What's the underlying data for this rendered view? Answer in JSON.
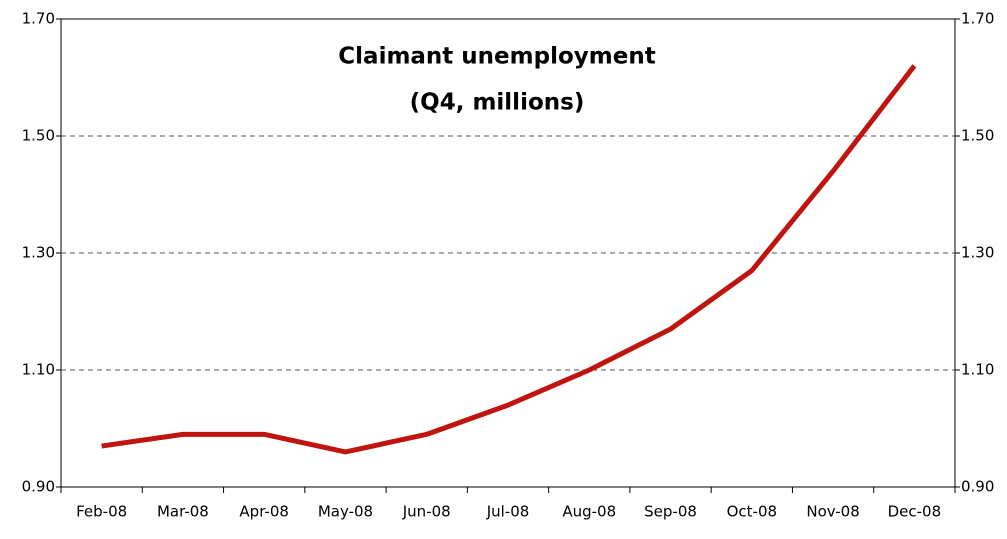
{
  "chart_data": {
    "type": "line",
    "title": "Claimant unemployment",
    "subtitle": "(Q4, millions)",
    "categories": [
      "Feb-08",
      "Mar-08",
      "Apr-08",
      "May-08",
      "Jun-08",
      "Jul-08",
      "Aug-08",
      "Sep-08",
      "Oct-08",
      "Nov-08",
      "Dec-08"
    ],
    "values": [
      0.97,
      0.99,
      0.99,
      0.96,
      0.99,
      1.04,
      1.1,
      1.17,
      1.27,
      1.44,
      1.62
    ],
    "color": "#c0150f",
    "ylim": [
      0.9,
      1.7
    ],
    "yticks": [
      {
        "value": 0.9,
        "label": "0.90"
      },
      {
        "value": 1.1,
        "label": "1.10"
      },
      {
        "value": 1.3,
        "label": "1.30"
      },
      {
        "value": 1.5,
        "label": "1.50"
      },
      {
        "value": 1.7,
        "label": "1.70"
      }
    ],
    "y2lim": [
      0.9,
      1.7
    ],
    "y2ticks": [
      {
        "value": 0.9,
        "label": "0.90"
      },
      {
        "value": 1.1,
        "label": "1.10"
      },
      {
        "value": 1.3,
        "label": "1.30"
      },
      {
        "value": 1.5,
        "label": "1.50"
      },
      {
        "value": 1.7,
        "label": "1.70"
      }
    ],
    "grid": true
  }
}
